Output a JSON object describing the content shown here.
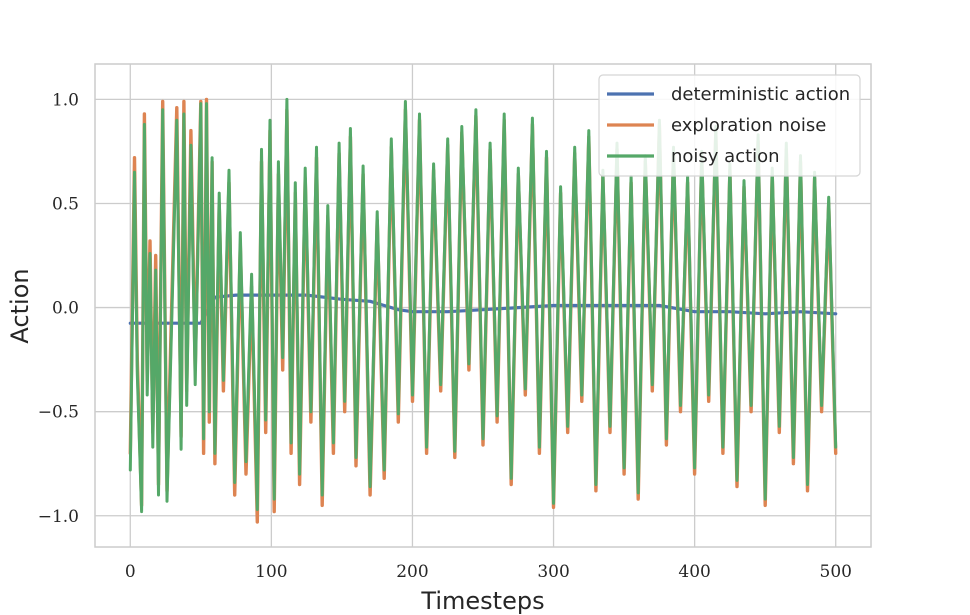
{
  "chart_data": {
    "type": "line",
    "xlabel": "Timesteps",
    "ylabel": "Action",
    "xlim": [
      -25,
      525
    ],
    "ylim": [
      -1.15,
      1.17
    ],
    "xticks": [
      0,
      100,
      200,
      300,
      400,
      500
    ],
    "xtick_labels": [
      "0",
      "100",
      "200",
      "300",
      "400",
      "500"
    ],
    "yticks": [
      -1.0,
      -0.5,
      0.0,
      0.5,
      1.0
    ],
    "ytick_labels": [
      "−1.0",
      "−0.5",
      "0.0",
      "0.5",
      "1.0"
    ],
    "grid": true,
    "legend_position": "top-right",
    "series": [
      {
        "name": "deterministic action",
        "color": "#4c72b0",
        "x": [
          0,
          50,
          60,
          75,
          100,
          125,
          150,
          170,
          180,
          190,
          200,
          225,
          250,
          275,
          300,
          325,
          350,
          375,
          400,
          425,
          450,
          475,
          500
        ],
        "y": [
          -0.075,
          -0.075,
          0.05,
          0.06,
          0.06,
          0.06,
          0.04,
          0.03,
          0.01,
          -0.01,
          -0.02,
          -0.02,
          -0.01,
          0.0,
          0.01,
          0.01,
          0.01,
          0.01,
          -0.02,
          -0.02,
          -0.03,
          -0.02,
          -0.03
        ]
      },
      {
        "name": "exploration noise",
        "color": "#dd8452",
        "x": [
          0,
          3,
          5,
          8,
          10,
          12,
          14,
          16,
          18,
          20,
          23,
          26,
          30,
          33,
          36,
          38,
          40,
          43,
          46,
          50,
          52,
          54,
          56,
          58,
          60,
          63,
          66,
          70,
          74,
          78,
          82,
          86,
          90,
          93,
          96,
          99,
          102,
          105,
          108,
          111,
          114,
          117,
          120,
          124,
          128,
          132,
          136,
          140,
          144,
          148,
          152,
          156,
          160,
          165,
          170,
          175,
          180,
          185,
          190,
          195,
          200,
          205,
          210,
          215,
          220,
          225,
          230,
          235,
          240,
          245,
          250,
          255,
          260,
          265,
          270,
          275,
          280,
          285,
          290,
          295,
          300,
          305,
          310,
          315,
          320,
          325,
          330,
          335,
          340,
          345,
          350,
          355,
          360,
          365,
          370,
          375,
          380,
          385,
          390,
          395,
          400,
          405,
          410,
          415,
          420,
          425,
          430,
          435,
          440,
          445,
          450,
          455,
          460,
          465,
          470,
          475,
          480,
          485,
          490,
          495,
          500
        ],
        "y": [
          -0.7,
          0.72,
          -0.25,
          -0.95,
          0.93,
          -0.35,
          0.32,
          -0.6,
          0.25,
          -0.85,
          0.99,
          -0.88,
          0.18,
          0.96,
          -0.62,
          0.99,
          -0.4,
          0.85,
          -0.3,
          0.99,
          -0.7,
          1.0,
          -0.55,
          0.7,
          -0.75,
          0.5,
          -0.4,
          0.6,
          -0.9,
          0.3,
          -0.8,
          0.1,
          -1.03,
          0.7,
          -0.6,
          0.85,
          -0.98,
          0.64,
          -0.3,
          0.95,
          -0.7,
          0.55,
          -0.85,
          0.62,
          -0.55,
          0.72,
          -0.95,
          0.44,
          -0.7,
          0.74,
          -0.5,
          0.82,
          -0.76,
          0.64,
          -0.9,
          0.42,
          -0.82,
          0.77,
          -0.55,
          0.95,
          -0.45,
          0.9,
          -0.7,
          0.66,
          -0.4,
          0.78,
          -0.72,
          0.84,
          -0.3,
          0.92,
          -0.66,
          0.76,
          -0.55,
          0.9,
          -0.85,
          0.64,
          -0.42,
          0.88,
          -0.7,
          0.72,
          -0.96,
          0.55,
          -0.6,
          0.74,
          -0.45,
          0.82,
          -0.88,
          0.63,
          -0.6,
          0.76,
          -0.8,
          0.6,
          -0.92,
          0.7,
          -0.4,
          0.88,
          -0.66,
          0.74,
          -0.5,
          0.6,
          -0.8,
          0.72,
          -0.45,
          0.84,
          -0.7,
          0.66,
          -0.86,
          0.58,
          -0.5,
          0.8,
          -0.95,
          0.64,
          -0.6,
          0.76,
          -0.75,
          0.7,
          -0.88,
          0.62,
          -0.5,
          0.5,
          -0.7
        ]
      },
      {
        "name": "noisy action",
        "color": "#55a868",
        "x": [
          0,
          3,
          5,
          8,
          10,
          12,
          14,
          16,
          18,
          20,
          23,
          26,
          30,
          33,
          36,
          38,
          40,
          43,
          46,
          50,
          52,
          54,
          56,
          58,
          60,
          63,
          66,
          70,
          74,
          78,
          82,
          86,
          90,
          93,
          96,
          99,
          102,
          105,
          108,
          111,
          114,
          117,
          120,
          124,
          128,
          132,
          136,
          140,
          144,
          148,
          152,
          156,
          160,
          165,
          170,
          175,
          180,
          185,
          190,
          195,
          200,
          205,
          210,
          215,
          220,
          225,
          230,
          235,
          240,
          245,
          250,
          255,
          260,
          265,
          270,
          275,
          280,
          285,
          290,
          295,
          300,
          305,
          310,
          315,
          320,
          325,
          330,
          335,
          340,
          345,
          350,
          355,
          360,
          365,
          370,
          375,
          380,
          385,
          390,
          395,
          400,
          405,
          410,
          415,
          420,
          425,
          430,
          435,
          440,
          445,
          450,
          455,
          460,
          465,
          470,
          475,
          480,
          485,
          490,
          495,
          500
        ],
        "y": [
          -0.78,
          0.65,
          -0.32,
          -0.98,
          0.88,
          -0.42,
          0.26,
          -0.67,
          0.18,
          -0.9,
          0.95,
          -0.93,
          0.1,
          0.9,
          -0.68,
          0.93,
          -0.47,
          0.78,
          -0.37,
          0.98,
          -0.63,
          0.98,
          -0.5,
          0.72,
          -0.7,
          0.55,
          -0.35,
          0.66,
          -0.84,
          0.36,
          -0.74,
          0.16,
          -0.97,
          0.76,
          -0.54,
          0.9,
          -0.92,
          0.7,
          -0.24,
          1.0,
          -0.65,
          0.6,
          -0.8,
          0.67,
          -0.5,
          0.77,
          -0.9,
          0.49,
          -0.65,
          0.79,
          -0.45,
          0.86,
          -0.72,
          0.68,
          -0.86,
          0.46,
          -0.78,
          0.81,
          -0.51,
          0.99,
          -0.42,
          0.93,
          -0.67,
          0.69,
          -0.37,
          0.81,
          -0.69,
          0.87,
          -0.27,
          0.95,
          -0.63,
          0.79,
          -0.52,
          0.93,
          -0.82,
          0.67,
          -0.39,
          0.91,
          -0.67,
          0.75,
          -0.94,
          0.58,
          -0.57,
          0.77,
          -0.42,
          0.85,
          -0.85,
          0.66,
          -0.57,
          0.79,
          -0.77,
          0.63,
          -0.89,
          0.73,
          -0.37,
          0.9,
          -0.63,
          0.77,
          -0.47,
          0.63,
          -0.77,
          0.75,
          -0.42,
          0.87,
          -0.67,
          0.69,
          -0.83,
          0.61,
          -0.47,
          0.83,
          -0.92,
          0.67,
          -0.57,
          0.79,
          -0.72,
          0.73,
          -0.85,
          0.65,
          -0.47,
          0.53,
          -0.67
        ]
      }
    ]
  }
}
